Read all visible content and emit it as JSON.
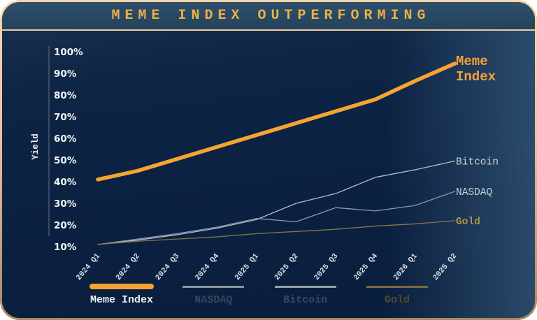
{
  "header": {
    "title": "MEME INDEX OUTPERFORMING"
  },
  "card": {
    "border_top_color": "#f6d7ac",
    "border_bottom_color": "#a9895e",
    "banner_color": "#2a4a64",
    "body_color": "#0c2342",
    "accent_orange": "#f5a433"
  },
  "chart_data": {
    "type": "line",
    "title": "MEME INDEX OUTPERFORMING",
    "xlabel": "",
    "ylabel": "Yield",
    "ylim": [
      10,
      100
    ],
    "grid": false,
    "legend_position": "bottom",
    "categories": [
      "2024 Q1",
      "2024 Q2",
      "2024 Q3",
      "2024 Q4",
      "2025 Q1",
      "2025 Q2",
      "2025 Q3",
      "2025 Q4",
      "2026 Q1",
      "2025 Q2"
    ],
    "yticks": [
      "100%",
      "90%",
      "80%",
      "70%",
      "60%",
      "50%",
      "40%",
      "30%",
      "20%",
      "10%"
    ],
    "series": [
      {
        "name": "Meme Index",
        "color": "#f5a433",
        "width": 5.5,
        "values": [
          41,
          45,
          50.5,
          56,
          61.5,
          67,
          72.5,
          78,
          86.5,
          94.5
        ],
        "end_label_lines": [
          "Meme",
          "Index"
        ],
        "label_color": "#f3a338",
        "end_label_size": 19,
        "end_label_bold": true
      },
      {
        "name": "Bitcoin",
        "color": "#b4bec9",
        "width": 1.3,
        "values": [
          11,
          13,
          15.5,
          18.5,
          22.5,
          30,
          34.5,
          42,
          45.5,
          49.5
        ],
        "end_label_lines": [
          "Bitcoin"
        ],
        "label_color": "#cdd5dd",
        "end_label_size": 14.5,
        "end_label_bold": false
      },
      {
        "name": "NASDAQ",
        "color": "#8f9aa6",
        "width": 1.3,
        "values": [
          11,
          13.5,
          16,
          19,
          23,
          21.5,
          28,
          26.5,
          29,
          35.5
        ],
        "end_label_lines": [
          "NASDAQ"
        ],
        "label_color": "#c4cdd5",
        "end_label_size": 14.5,
        "end_label_bold": false
      },
      {
        "name": "Gold",
        "color": "#86764a",
        "width": 1.3,
        "values": [
          11,
          12.5,
          13.5,
          14.5,
          16,
          17,
          18,
          19.5,
          20.5,
          22
        ],
        "end_label_lines": [
          "Gold"
        ],
        "label_color": "#ad9348",
        "end_label_size": 14.5,
        "end_label_bold": true
      }
    ],
    "legend": [
      {
        "label": "Meme Index",
        "swatch": "#f5a433",
        "thick": true,
        "label_color": "#eef2f5"
      },
      {
        "label": "NASDAQ",
        "swatch": "#8a949e",
        "thick": false,
        "label_color": "#35465a"
      },
      {
        "label": "Bitcoin",
        "swatch": "#95a0aa",
        "thick": false,
        "label_color": "#37485c"
      },
      {
        "label": "Gold",
        "swatch": "#7a6a40",
        "thick": false,
        "label_color": "#544a2c"
      }
    ],
    "colors": {
      "axis": "#5d7286",
      "ytick_text": "#f3f6f8",
      "xtick_text": "#d9dfe5"
    }
  }
}
